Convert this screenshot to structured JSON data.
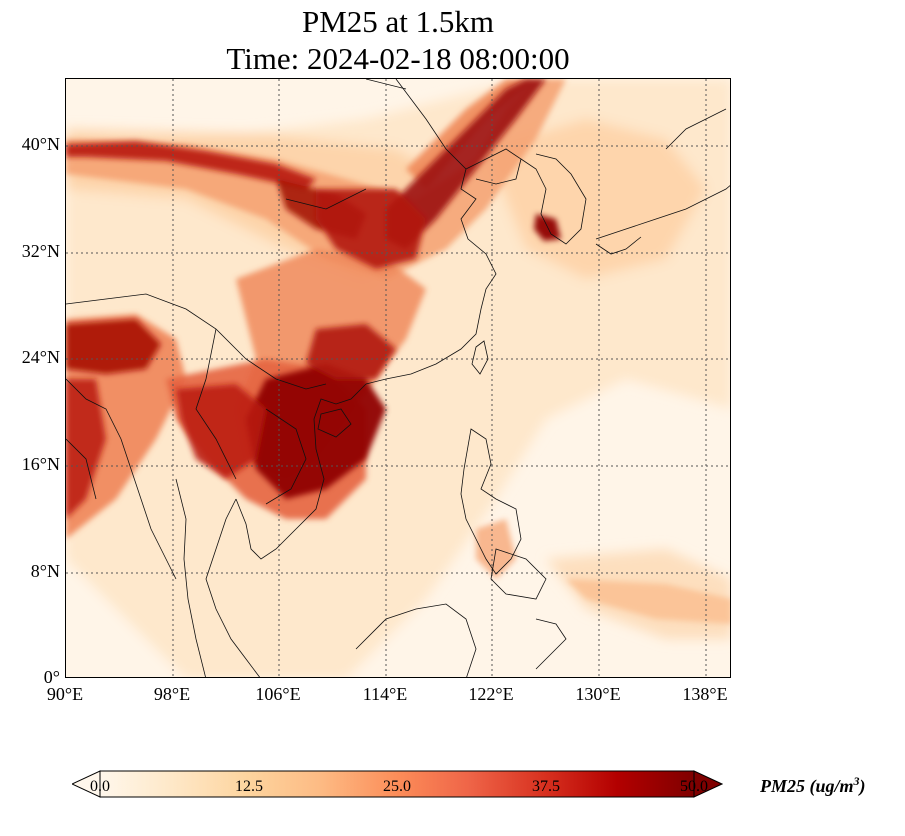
{
  "title": {
    "line1": "PM25 at 1.5km",
    "line2": "Time: 2024-02-18 08:00:00"
  },
  "map": {
    "variable": "PM25",
    "level": "1.5km",
    "lat_range": [
      0,
      45
    ],
    "lon_range": [
      90,
      140
    ],
    "lat_ticks": [
      "40°N",
      "32°N",
      "24°N",
      "16°N",
      "8°N",
      "0°"
    ],
    "lon_ticks": [
      "90°E",
      "98°E",
      "106°E",
      "114°E",
      "122°E",
      "130°E",
      "138°E"
    ],
    "gridlines": "dotted",
    "high_concentration_regions": [
      "Indochina (Laos, Vietnam, Cambodia)",
      "South China",
      "North China Plain",
      "Korean west coast",
      "Northeast Myanmar / India border"
    ]
  },
  "colorbar": {
    "label_main": "PM25 (ug/m",
    "label_sup": "3",
    "label_end": ")",
    "ticks": [
      "0.0",
      "12.5",
      "25.0",
      "37.5",
      "50.0"
    ],
    "min": 0,
    "max": 50,
    "colormap": "OrRd",
    "extend": "both",
    "colors": [
      "#fff7ec",
      "#fee8c8",
      "#fdd49e",
      "#fdbb84",
      "#fc8d59",
      "#ef6548",
      "#d7301f",
      "#b30000",
      "#7f0000"
    ]
  }
}
